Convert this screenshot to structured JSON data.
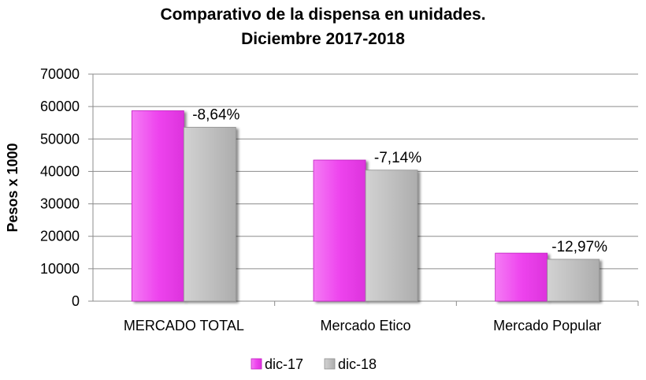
{
  "chart_data": {
    "type": "bar",
    "title": [
      "Comparativo de la dispensa en unidades.",
      "Diciembre 2017-2018"
    ],
    "xlabel": "",
    "ylabel": "Pesos x 1000",
    "ylim": [
      0,
      70000
    ],
    "yticks": [
      0,
      10000,
      20000,
      30000,
      40000,
      50000,
      60000,
      70000
    ],
    "grid": true,
    "legend_position": "bottom",
    "categories": [
      "MERCADO TOTAL",
      "Mercado Etico",
      "Mercado Popular"
    ],
    "series": [
      {
        "name": "dic-17",
        "color": "#ee55ee",
        "values": [
          58700,
          43500,
          14800
        ]
      },
      {
        "name": "dic-18",
        "color": "#c0c0c0",
        "values": [
          53600,
          40400,
          12900
        ]
      }
    ],
    "annotations": [
      "-8,64%",
      "-7,14%",
      "-12,97%"
    ]
  }
}
